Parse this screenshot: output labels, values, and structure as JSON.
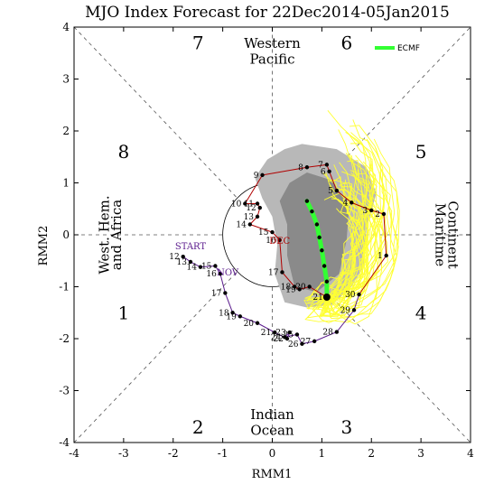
{
  "chart_data": {
    "type": "scatter",
    "title": "MJO Index Forecast for 22Dec2014-05Jan2015",
    "xlabel": "RMM1",
    "ylabel": "RMM2",
    "xlim": [
      -4,
      4
    ],
    "ylim": [
      -4,
      4
    ],
    "xticks": [
      "-4",
      "-3",
      "-2",
      "-1",
      "0",
      "1",
      "2",
      "3",
      "4"
    ],
    "yticks": [
      "-4",
      "-3",
      "-2",
      "-1",
      "0",
      "1",
      "2",
      "3",
      "4"
    ],
    "phases": [
      {
        "label": "1",
        "x": -3.0,
        "y": -1.5
      },
      {
        "label": "2",
        "x": -1.5,
        "y": -3.7
      },
      {
        "label": "3",
        "x": 1.5,
        "y": -3.7
      },
      {
        "label": "4",
        "x": 3.0,
        "y": -1.5
      },
      {
        "label": "5",
        "x": 3.0,
        "y": 1.6
      },
      {
        "label": "6",
        "x": 1.5,
        "y": 3.7
      },
      {
        "label": "7",
        "x": -1.5,
        "y": 3.7
      },
      {
        "label": "8",
        "x": -3.0,
        "y": 1.6
      }
    ],
    "regions": {
      "top": [
        "Western",
        "Pacific"
      ],
      "bottom": [
        "Indian",
        "Ocean"
      ],
      "left": [
        "West. Hem.",
        "and Africa"
      ],
      "right": [
        "Maritime",
        "Continent"
      ]
    },
    "start_label": "START",
    "month_labels": [
      {
        "text": "NOV",
        "x": -0.9,
        "y": -0.78
      },
      {
        "text": "DEC",
        "x": 0.15,
        "y": -0.17
      }
    ],
    "series": [
      {
        "month": "NOV",
        "color": "#5a1a8c",
        "points": [
          {
            "d": "12",
            "x": -1.8,
            "y": -0.42
          },
          {
            "d": "13",
            "x": -1.65,
            "y": -0.52
          },
          {
            "d": "14",
            "x": -1.45,
            "y": -0.62
          },
          {
            "d": "15",
            "x": -1.15,
            "y": -0.6
          },
          {
            "d": "16",
            "x": -1.05,
            "y": -0.75
          },
          {
            "d": "17",
            "x": -0.95,
            "y": -1.12
          },
          {
            "d": "18",
            "x": -0.8,
            "y": -1.5
          },
          {
            "d": "19",
            "x": -0.65,
            "y": -1.57
          },
          {
            "d": "20",
            "x": -0.3,
            "y": -1.7
          },
          {
            "d": "21",
            "x": 0.05,
            "y": -1.88
          },
          {
            "d": "22",
            "x": 0.3,
            "y": -2.0
          },
          {
            "d": "23",
            "x": 0.35,
            "y": -1.88
          },
          {
            "d": "24",
            "x": 0.25,
            "y": -1.97
          },
          {
            "d": "25",
            "x": 0.5,
            "y": -1.92
          },
          {
            "d": "26",
            "x": 0.6,
            "y": -2.1
          },
          {
            "d": "27",
            "x": 0.85,
            "y": -2.05
          },
          {
            "d": "28",
            "x": 1.3,
            "y": -1.87
          },
          {
            "d": "29",
            "x": 1.65,
            "y": -1.45
          },
          {
            "d": "30",
            "x": 1.75,
            "y": -1.15
          }
        ]
      },
      {
        "month": "DEC",
        "color": "#b00000",
        "points": [
          {
            "d": "1",
            "x": 2.3,
            "y": -0.4
          },
          {
            "d": "2",
            "x": 2.25,
            "y": 0.4
          },
          {
            "d": "3",
            "x": 2.0,
            "y": 0.47
          },
          {
            "d": "4",
            "x": 1.6,
            "y": 0.62
          },
          {
            "d": "5",
            "x": 1.3,
            "y": 0.85
          },
          {
            "d": "6",
            "x": 1.15,
            "y": 1.22
          },
          {
            "d": "7",
            "x": 1.1,
            "y": 1.35
          },
          {
            "d": "8",
            "x": 0.7,
            "y": 1.3
          },
          {
            "d": "9",
            "x": -0.2,
            "y": 1.15
          },
          {
            "d": "10",
            "x": -0.55,
            "y": 0.6
          },
          {
            "d": "11",
            "x": -0.3,
            "y": 0.6
          },
          {
            "d": "12",
            "x": -0.25,
            "y": 0.52
          },
          {
            "d": "13",
            "x": -0.3,
            "y": 0.35
          },
          {
            "d": "14",
            "x": -0.45,
            "y": 0.2
          },
          {
            "d": "15",
            "x": 0.0,
            "y": 0.05
          },
          {
            "d": "16",
            "x": 0.15,
            "y": -0.1
          },
          {
            "d": "17",
            "x": 0.2,
            "y": -0.72
          },
          {
            "d": "18",
            "x": 0.45,
            "y": -1.0
          },
          {
            "d": "19",
            "x": 0.55,
            "y": -1.05
          },
          {
            "d": "20",
            "x": 0.75,
            "y": -1.0
          },
          {
            "d": "21",
            "x": 1.1,
            "y": -1.2
          }
        ]
      }
    ],
    "ensemble_color": "#ffff33",
    "spread_outer_color": "#b8b8b8",
    "spread_inner_color": "#8a8a8a",
    "legend": {
      "label": "ECMF",
      "color": "#33ff33"
    },
    "ecmf_mean": [
      {
        "x": 1.1,
        "y": -1.2
      },
      {
        "x": 1.1,
        "y": -0.9
      },
      {
        "x": 1.05,
        "y": -0.6
      },
      {
        "x": 1.0,
        "y": -0.3
      },
      {
        "x": 0.95,
        "y": -0.05
      },
      {
        "x": 0.9,
        "y": 0.2
      },
      {
        "x": 0.8,
        "y": 0.45
      },
      {
        "x": 0.7,
        "y": 0.65
      }
    ]
  }
}
